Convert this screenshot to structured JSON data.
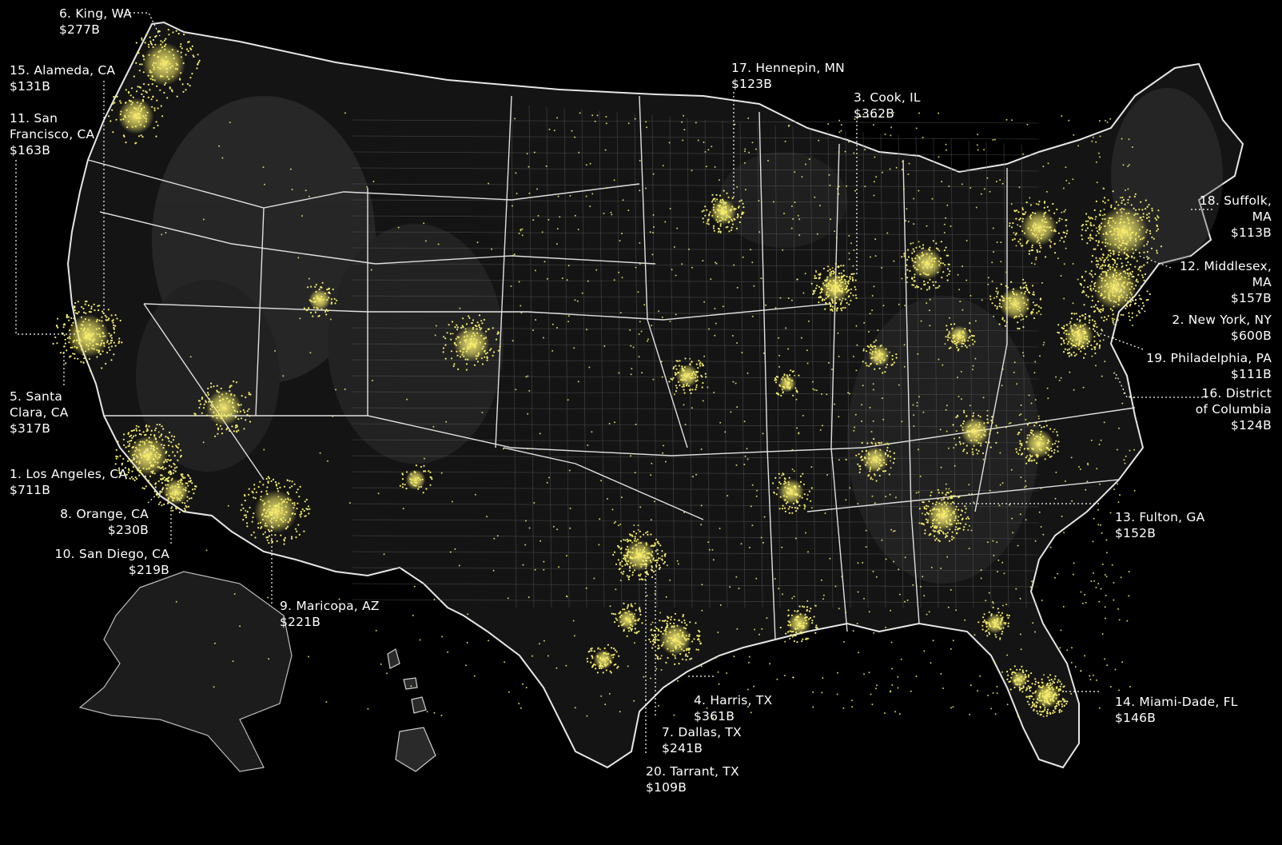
{
  "map": {
    "theme": {
      "background": "#000000",
      "land": "#111111",
      "relief": "#5a5a5a",
      "borders": "#e6e6e6",
      "county_lines": "#6a6a6a",
      "dots": "#f5ec6a",
      "labels": "#ffffff"
    },
    "counties": [
      {
        "rank": 1,
        "name": "1. Los Angeles, CA",
        "value": "$711B"
      },
      {
        "rank": 2,
        "name": "2. New York, NY",
        "value": "$600B"
      },
      {
        "rank": 3,
        "name": "3. Cook, IL",
        "value": "$362B"
      },
      {
        "rank": 4,
        "name": "4. Harris, TX",
        "value": "$361B"
      },
      {
        "rank": 5,
        "name_lines": [
          "5. Santa",
          "Clara, CA"
        ],
        "value": "$317B"
      },
      {
        "rank": 6,
        "name": "6. King, WA",
        "value": "$277B"
      },
      {
        "rank": 7,
        "name": "7. Dallas, TX",
        "value": "$241B"
      },
      {
        "rank": 8,
        "name": "8. Orange, CA",
        "value": "$230B"
      },
      {
        "rank": 9,
        "name": "9. Maricopa, AZ",
        "value": "$221B"
      },
      {
        "rank": 10,
        "name": "10. San Diego, CA",
        "value": "$219B"
      },
      {
        "rank": 11,
        "name_lines": [
          "11. San",
          "Francisco, CA"
        ],
        "value": "$163B"
      },
      {
        "rank": 12,
        "name_lines": [
          "12. Middlesex,",
          "MA"
        ],
        "value": "$157B"
      },
      {
        "rank": 13,
        "name": "13. Fulton, GA",
        "value": "$152B"
      },
      {
        "rank": 14,
        "name": "14. Miami-Dade, FL",
        "value": "$146B"
      },
      {
        "rank": 15,
        "name": "15. Alameda, CA",
        "value": "$131B"
      },
      {
        "rank": 16,
        "name_lines": [
          "16. District",
          "of Columbia"
        ],
        "value": "$124B"
      },
      {
        "rank": 17,
        "name": "17. Hennepin, MN",
        "value": "$123B"
      },
      {
        "rank": 18,
        "name_lines": [
          "18. Suffolk,",
          "MA"
        ],
        "value": "$113B"
      },
      {
        "rank": 19,
        "name": "19. Philadelphia, PA",
        "value": "$111B"
      },
      {
        "rank": 20,
        "name": "20. Tarrant, TX",
        "value": "$109B"
      }
    ]
  }
}
